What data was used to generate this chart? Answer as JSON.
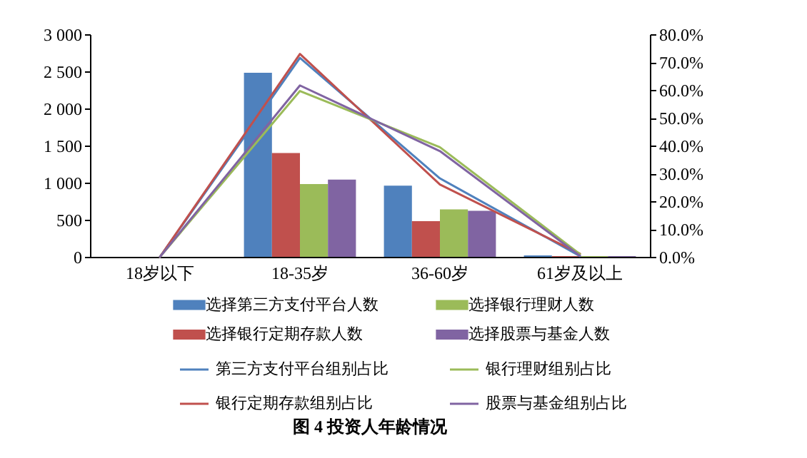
{
  "chart_data": {
    "type": "bar",
    "title": "图 4   投资人年龄情况",
    "categories": [
      "18岁以下",
      "18-35岁",
      "36-60岁",
      "61岁及以上"
    ],
    "series": [
      {
        "name": "选择第三方支付平台人数",
        "color": "#4f81bd",
        "values": [
          0,
          2480,
          960,
          20
        ]
      },
      {
        "name": "选择银行定期存款人数",
        "color": "#c0504d",
        "values": [
          0,
          1400,
          480,
          10
        ]
      },
      {
        "name": "选择银行理财人数",
        "color": "#9bbb59",
        "values": [
          0,
          980,
          640,
          10
        ]
      },
      {
        "name": "选择股票与基金人数",
        "color": "#8064a2",
        "values": [
          0,
          1040,
          620,
          10
        ]
      },
      {
        "name": "第三方支付平台组别占比",
        "type": "line",
        "axis": "y2",
        "color": "#4f81bd",
        "values": [
          0,
          71.5,
          28.2,
          0.3
        ]
      },
      {
        "name": "银行定期存款组别占比",
        "type": "line",
        "axis": "y2",
        "color": "#c0504d",
        "values": [
          0,
          72.9,
          26.0,
          1.1
        ]
      },
      {
        "name": "银行理财组别占比",
        "type": "line",
        "axis": "y2",
        "color": "#9bbb59",
        "values": [
          0,
          59.6,
          39.4,
          1.0
        ]
      },
      {
        "name": "股票与基金组别占比",
        "type": "line",
        "axis": "y2",
        "color": "#8064a2",
        "values": [
          0,
          61.6,
          38.0,
          0.4
        ]
      }
    ],
    "ylim": [
      0,
      3000
    ],
    "yticks": [
      0,
      500,
      {
        "value": 1000,
        "label": "1 000"
      },
      {
        "value": 1500,
        "label": "1 500"
      },
      {
        "value": 2000,
        "label": "2 000"
      },
      {
        "value": 2500,
        "label": "2 500"
      },
      {
        "value": 3000,
        "label": "3 000"
      }
    ],
    "y2lim": [
      0,
      80
    ],
    "y2ticks": [
      {
        "value": 0,
        "label": "0.0%"
      },
      {
        "value": 10,
        "label": "10.0%"
      },
      {
        "value": 20,
        "label": "20.0%"
      },
      {
        "value": 30,
        "label": "30.0%"
      },
      {
        "value": 40,
        "label": "40.0%"
      },
      {
        "value": 50,
        "label": "50.0%"
      },
      {
        "value": 60,
        "label": "60.0%"
      },
      {
        "value": 70,
        "label": "70.0%"
      },
      {
        "value": 80,
        "label": "80.0%"
      }
    ],
    "grid": false,
    "legend": "bottom"
  }
}
